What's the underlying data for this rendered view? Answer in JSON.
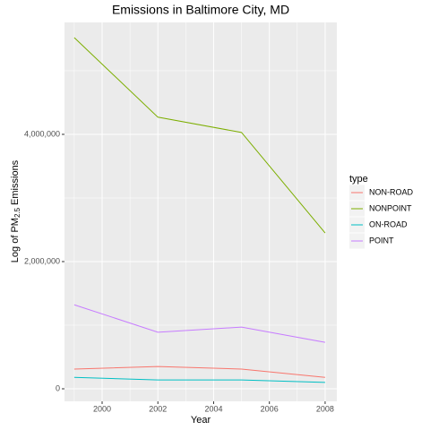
{
  "chart_data": {
    "type": "line",
    "title": "Emissions in Baltimore City, MD",
    "x_label": "Year",
    "y_label": [
      "Log of PM",
      "2.5",
      "Emissions"
    ],
    "legend_title": "type",
    "legend": "right",
    "grid": true,
    "x": [
      1999,
      2002,
      2005,
      2008
    ],
    "series": [
      {
        "name": "NON-ROAD",
        "color": "#F8766D",
        "values": [
          310000,
          350000,
          310000,
          180000
        ]
      },
      {
        "name": "NONPOINT",
        "color": "#7CAE00",
        "values": [
          5520000,
          4270000,
          4030000,
          2450000
        ]
      },
      {
        "name": "ON-ROAD",
        "color": "#00BFC4",
        "values": [
          180000,
          140000,
          140000,
          100000
        ]
      },
      {
        "name": "POINT",
        "color": "#C77CFF",
        "values": [
          1320000,
          890000,
          970000,
          730000
        ]
      }
    ],
    "xlim": [
      1998.65,
      2008.42
    ],
    "xticks": [
      2000,
      2002,
      2004,
      2006,
      2008
    ],
    "ylim": [
      -197000,
      5760000
    ],
    "yticks": [
      0,
      {
        "value": 2000000,
        "label": "2,000,000"
      },
      {
        "value": 4000000,
        "label": "4,000,000"
      }
    ]
  }
}
